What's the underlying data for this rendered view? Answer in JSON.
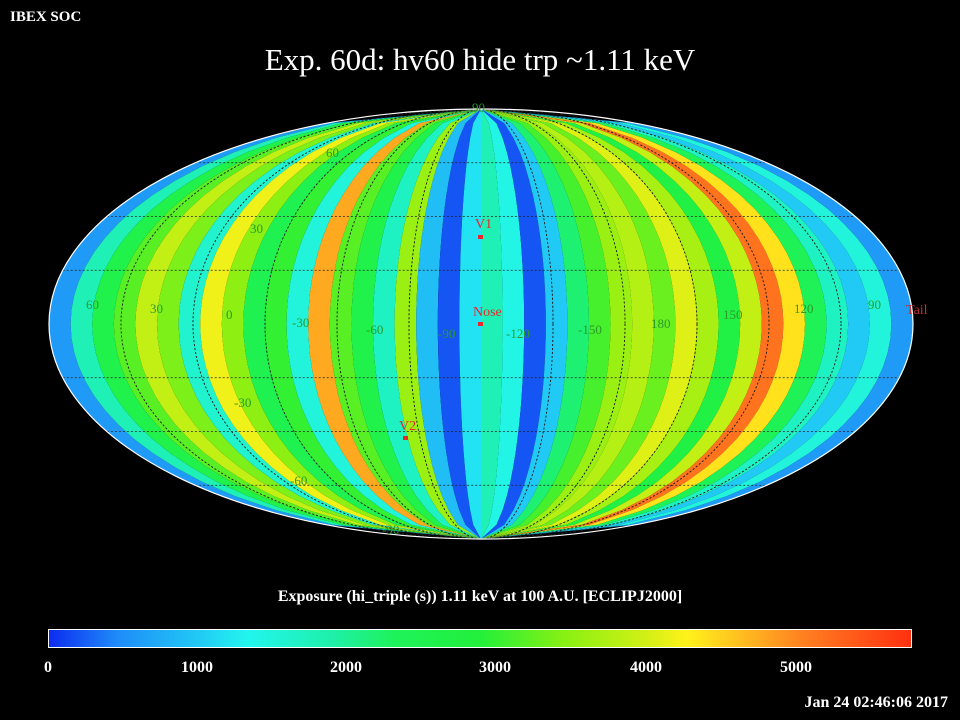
{
  "header": {
    "org": "IBEX SOC",
    "title": "Exp.   60d: hv60 hide trp ~1.11 keV"
  },
  "map": {
    "projection": "Aitoff/Hammer all-sky (ecliptic)",
    "longitude_labels": [
      "60",
      "30",
      "0",
      "-30",
      "-60",
      "-90",
      "-120",
      "-150",
      "180",
      "150",
      "120",
      "90"
    ],
    "latitude_labels": [
      "90",
      "60",
      "30",
      "-30",
      "-60",
      "-90"
    ],
    "markers": [
      {
        "name": "V1",
        "color": "#e8282a"
      },
      {
        "name": "Nose",
        "color": "#e8282a"
      },
      {
        "name": "V2",
        "color": "#e8282a"
      },
      {
        "name": "Tail",
        "color": "#c03030"
      }
    ],
    "band_levels": [
      600,
      1800,
      2600,
      3200,
      3900,
      3400,
      1600,
      4200,
      3500,
      2500,
      3000,
      1500,
      4800,
      3200,
      2600,
      1700,
      3600,
      900,
      200,
      1200,
      1800,
      1400,
      200,
      1000,
      2200,
      3100,
      3600,
      3800,
      3300,
      4100,
      3700,
      2700,
      3900,
      5200,
      4400,
      2400,
      1700,
      1000,
      1500,
      600
    ],
    "label_color": "#2a9a2a"
  },
  "colorbar": {
    "caption": "Exposure (hi_triple (s))  1.11 keV at 100 A.U. [ECLIPJ2000]",
    "ticks": [
      "0",
      "1000",
      "2000",
      "3000",
      "4000",
      "5000"
    ],
    "range": [
      0,
      5800
    ]
  },
  "footer": {
    "timestamp": "Jan 24 02:46:06 2017"
  }
}
